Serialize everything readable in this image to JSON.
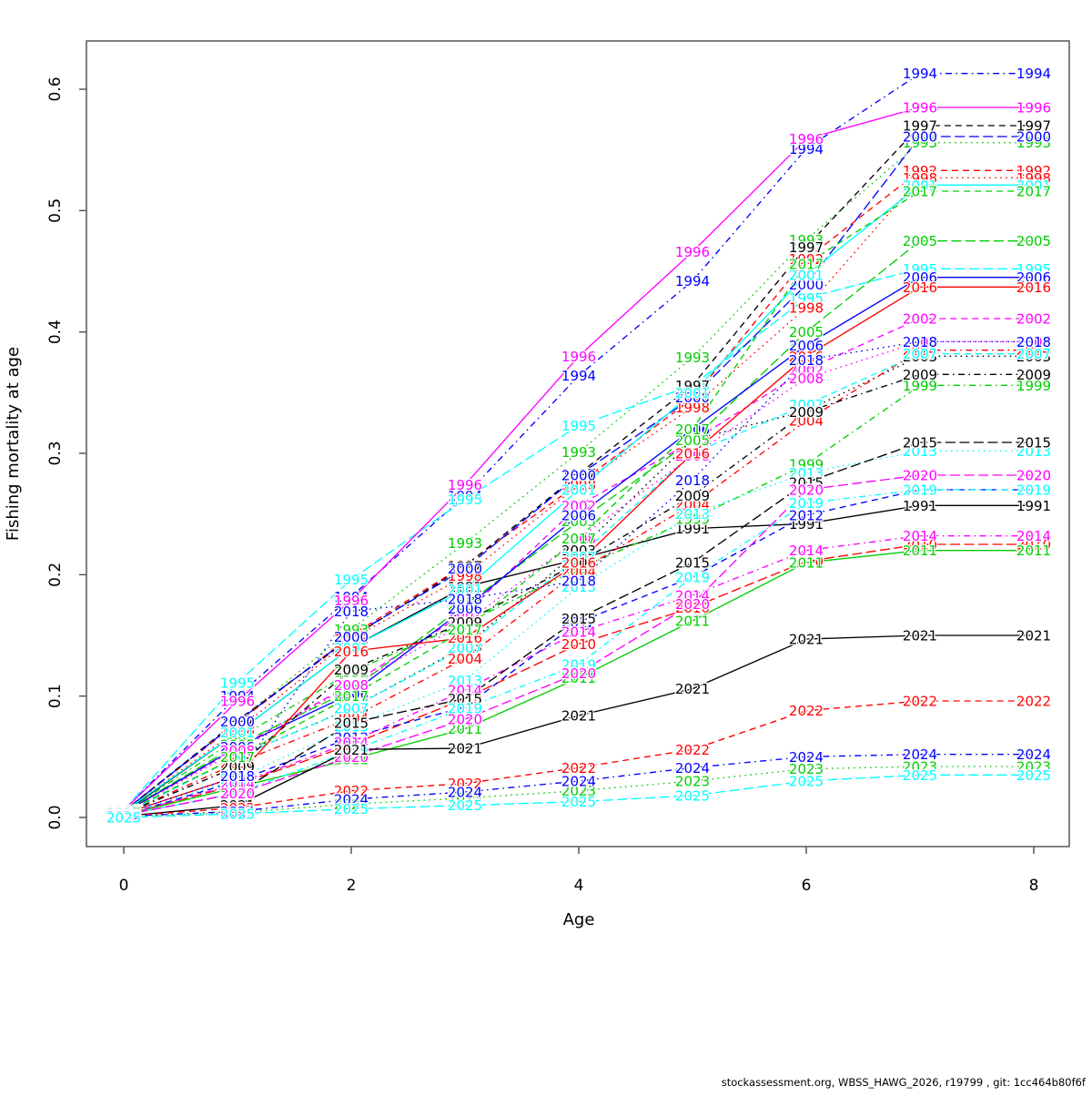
{
  "footer": "stockassessment.org, WBSS_HAWG_2026, r19799 , git: 1cc464b80f6f",
  "chart_data": {
    "type": "line",
    "title": "",
    "xlabel": "Age",
    "ylabel": "Fishing mortality at age",
    "x": [
      0,
      1,
      2,
      3,
      4,
      5,
      6,
      7,
      8
    ],
    "xlim": [
      0,
      8
    ],
    "ylim": [
      0.0,
      0.6
    ],
    "x_tick_values": [
      0,
      2,
      4,
      6,
      8
    ],
    "x_tick_labels": [
      "0",
      "2",
      "4",
      "6",
      "8"
    ],
    "y_tick_values": [
      0.0,
      0.1,
      0.2,
      0.3,
      0.4,
      0.5,
      0.6
    ],
    "y_tick_labels": [
      "0.0",
      "0.1",
      "0.2",
      "0.3",
      "0.4",
      "0.5",
      "0.6"
    ],
    "grid": false,
    "legend_position": "labels-at-points",
    "palette": {
      "black": "#000000",
      "red": "#FF0000",
      "green": "#00CD00",
      "blue": "#0000FF",
      "cyan": "#00FFFF",
      "magenta": "#FF00FF"
    },
    "series": [
      {
        "name": "1991",
        "color": "#000000",
        "lty": "solid",
        "values": [
          0.004,
          0.07,
          0.14,
          0.19,
          0.213,
          0.238,
          0.242,
          0.257,
          0.257
        ]
      },
      {
        "name": "1992",
        "color": "#FF0000",
        "lty": "dashed",
        "values": [
          0.005,
          0.078,
          0.15,
          0.208,
          0.275,
          0.345,
          0.46,
          0.533,
          0.533
        ]
      },
      {
        "name": "1993",
        "color": "#00CD00",
        "lty": "dotted",
        "values": [
          0.005,
          0.079,
          0.155,
          0.226,
          0.301,
          0.379,
          0.476,
          0.556,
          0.556
        ]
      },
      {
        "name": "1994",
        "color": "#0000FF",
        "lty": "dotdash",
        "values": [
          0.006,
          0.1,
          0.182,
          0.265,
          0.364,
          0.442,
          0.551,
          0.613,
          0.613
        ]
      },
      {
        "name": "1995",
        "color": "#00FFFF",
        "lty": "longdash",
        "values": [
          0.006,
          0.111,
          0.196,
          0.262,
          0.323,
          0.356,
          0.428,
          0.452,
          0.452
        ]
      },
      {
        "name": "1996",
        "color": "#FF00FF",
        "lty": "solid",
        "values": [
          0.006,
          0.096,
          0.179,
          0.274,
          0.38,
          0.466,
          0.559,
          0.585,
          0.585
        ]
      },
      {
        "name": "1997",
        "color": "#000000",
        "lty": "dashed",
        "values": [
          0.005,
          0.08,
          0.148,
          0.207,
          0.283,
          0.356,
          0.47,
          0.57,
          0.57
        ]
      },
      {
        "name": "1998",
        "color": "#FF0000",
        "lty": "dotted",
        "values": [
          0.005,
          0.072,
          0.147,
          0.199,
          0.274,
          0.338,
          0.42,
          0.527,
          0.527
        ]
      },
      {
        "name": "1999",
        "color": "#00CD00",
        "lty": "dotdash",
        "values": [
          0.004,
          0.065,
          0.12,
          0.16,
          0.205,
          0.246,
          0.291,
          0.356,
          0.356
        ]
      },
      {
        "name": "2000",
        "color": "#0000FF",
        "lty": "longdash",
        "values": [
          0.005,
          0.079,
          0.149,
          0.205,
          0.282,
          0.346,
          0.439,
          0.561,
          0.561
        ]
      },
      {
        "name": "2001",
        "color": "#00FFFF",
        "lty": "solid",
        "values": [
          0.005,
          0.07,
          0.14,
          0.188,
          0.27,
          0.35,
          0.447,
          0.521,
          0.521
        ]
      },
      {
        "name": "2002",
        "color": "#FF00FF",
        "lty": "dashed",
        "values": [
          0.004,
          0.057,
          0.11,
          0.168,
          0.257,
          0.31,
          0.369,
          0.411,
          0.411
        ]
      },
      {
        "name": "2003",
        "color": "#000000",
        "lty": "dotted",
        "values": [
          0.003,
          0.05,
          0.09,
          0.141,
          0.22,
          0.311,
          0.335,
          0.38,
          0.38
        ]
      },
      {
        "name": "2004",
        "color": "#FF0000",
        "lty": "dotdash",
        "values": [
          0.003,
          0.045,
          0.082,
          0.131,
          0.203,
          0.258,
          0.327,
          0.385,
          0.385
        ]
      },
      {
        "name": "2005",
        "color": "#00CD00",
        "lty": "longdash",
        "values": [
          0.004,
          0.06,
          0.105,
          0.175,
          0.244,
          0.311,
          0.4,
          0.475,
          0.475
        ]
      },
      {
        "name": "2006",
        "color": "#0000FF",
        "lty": "solid",
        "values": [
          0.004,
          0.058,
          0.102,
          0.172,
          0.249,
          0.32,
          0.389,
          0.445,
          0.445
        ]
      },
      {
        "name": "2007",
        "color": "#00FFFF",
        "lty": "dashed",
        "values": [
          0.003,
          0.05,
          0.09,
          0.14,
          0.215,
          0.3,
          0.34,
          0.382,
          0.382
        ]
      },
      {
        "name": "2008",
        "color": "#FF00FF",
        "lty": "dotted",
        "values": [
          0.004,
          0.055,
          0.109,
          0.16,
          0.23,
          0.298,
          0.362,
          0.392,
          0.392
        ]
      },
      {
        "name": "2009",
        "color": "#000000",
        "lty": "dotdash",
        "values": [
          0.003,
          0.042,
          0.122,
          0.161,
          0.21,
          0.265,
          0.334,
          0.365,
          0.365
        ]
      },
      {
        "name": "2010",
        "color": "#FF0000",
        "lty": "longdash",
        "values": [
          0.002,
          0.027,
          0.06,
          0.098,
          0.143,
          0.173,
          0.211,
          0.225,
          0.225
        ]
      },
      {
        "name": "2011",
        "color": "#00CD00",
        "lty": "solid",
        "values": [
          0.002,
          0.025,
          0.048,
          0.073,
          0.115,
          0.162,
          0.21,
          0.22,
          0.22
        ]
      },
      {
        "name": "2012",
        "color": "#0000FF",
        "lty": "dashed",
        "values": [
          0.002,
          0.03,
          0.066,
          0.091,
          0.161,
          0.198,
          0.249,
          0.27,
          0.27
        ]
      },
      {
        "name": "2013",
        "color": "#00FFFF",
        "lty": "dotted",
        "values": [
          0.002,
          0.032,
          0.075,
          0.113,
          0.19,
          0.25,
          0.284,
          0.302,
          0.302
        ]
      },
      {
        "name": "2014",
        "color": "#FF00FF",
        "lty": "dotdash",
        "values": [
          0.002,
          0.028,
          0.062,
          0.105,
          0.153,
          0.183,
          0.22,
          0.232,
          0.232
        ]
      },
      {
        "name": "2015",
        "color": "#000000",
        "lty": "longdash",
        "values": [
          0.002,
          0.02,
          0.078,
          0.098,
          0.164,
          0.21,
          0.276,
          0.309,
          0.309
        ]
      },
      {
        "name": "2016",
        "color": "#FF0000",
        "lty": "solid",
        "values": [
          0.003,
          0.034,
          0.137,
          0.148,
          0.21,
          0.3,
          0.38,
          0.437,
          0.437
        ]
      },
      {
        "name": "2017",
        "color": "#00CD00",
        "lty": "dashed",
        "values": [
          0.004,
          0.05,
          0.1,
          0.155,
          0.23,
          0.32,
          0.456,
          0.516,
          0.516
        ]
      },
      {
        "name": "2018",
        "color": "#0000FF",
        "lty": "dotted",
        "values": [
          0.003,
          0.034,
          0.17,
          0.18,
          0.195,
          0.278,
          0.377,
          0.392,
          0.392
        ]
      },
      {
        "name": "2019",
        "color": "#00FFFF",
        "lty": "dotdash",
        "values": [
          0.002,
          0.02,
          0.055,
          0.09,
          0.126,
          0.198,
          0.259,
          0.27,
          0.27
        ]
      },
      {
        "name": "2020",
        "color": "#FF00FF",
        "lty": "longdash",
        "values": [
          0.002,
          0.02,
          0.05,
          0.081,
          0.119,
          0.176,
          0.27,
          0.282,
          0.282
        ]
      },
      {
        "name": "2021",
        "color": "#000000",
        "lty": "solid",
        "values": [
          0.001,
          0.01,
          0.056,
          0.057,
          0.084,
          0.106,
          0.147,
          0.15,
          0.15
        ]
      },
      {
        "name": "2022",
        "color": "#FF0000",
        "lty": "dashed",
        "values": [
          0.001,
          0.008,
          0.022,
          0.028,
          0.041,
          0.056,
          0.088,
          0.096,
          0.096
        ]
      },
      {
        "name": "2023",
        "color": "#00CD00",
        "lty": "dotted",
        "values": [
          0.001,
          0.004,
          0.011,
          0.016,
          0.022,
          0.03,
          0.04,
          0.042,
          0.042
        ]
      },
      {
        "name": "2024",
        "color": "#0000FF",
        "lty": "dotdash",
        "values": [
          0.001,
          0.005,
          0.015,
          0.021,
          0.03,
          0.041,
          0.05,
          0.052,
          0.052
        ]
      },
      {
        "name": "2025",
        "color": "#00FFFF",
        "lty": "longdash",
        "values": [
          0.0,
          0.003,
          0.007,
          0.01,
          0.013,
          0.018,
          0.03,
          0.035,
          0.035
        ]
      }
    ]
  }
}
